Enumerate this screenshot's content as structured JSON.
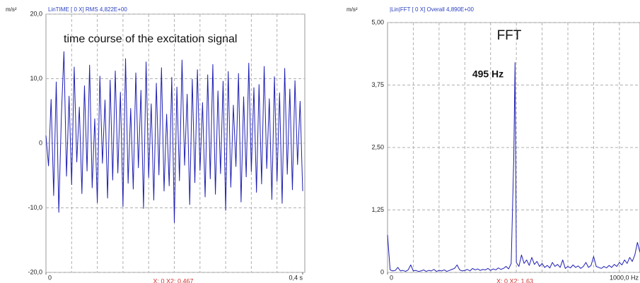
{
  "chart_data": [
    {
      "type": "line",
      "unit": "m/s²",
      "header": "LinTIME [ 0 X] RMS 4,822E+00",
      "annotations": [
        "time course of the excitation signal"
      ],
      "cursor": "X: 0 X2: 0,467",
      "x": [
        0,
        0.004,
        0.008,
        0.012,
        0.016,
        0.02,
        0.024,
        0.028,
        0.032,
        0.036,
        0.04,
        0.044,
        0.048,
        0.052,
        0.056,
        0.06,
        0.064,
        0.068,
        0.072,
        0.076,
        0.08,
        0.084,
        0.088,
        0.092,
        0.096,
        0.1,
        0.104,
        0.108,
        0.112,
        0.116,
        0.12,
        0.124,
        0.128,
        0.132,
        0.136,
        0.14,
        0.144,
        0.148,
        0.152,
        0.156,
        0.16,
        0.164,
        0.168,
        0.172,
        0.176,
        0.18,
        0.184,
        0.188,
        0.192,
        0.196,
        0.2,
        0.204,
        0.208,
        0.212,
        0.216,
        0.22,
        0.224,
        0.228,
        0.232,
        0.236,
        0.24,
        0.244,
        0.248,
        0.252,
        0.256,
        0.26,
        0.264,
        0.268,
        0.272,
        0.276,
        0.28,
        0.284,
        0.288,
        0.292,
        0.296,
        0.3,
        0.304,
        0.308,
        0.312,
        0.316,
        0.32,
        0.324,
        0.328,
        0.332,
        0.336,
        0.34,
        0.344,
        0.348,
        0.352,
        0.356,
        0.36,
        0.364,
        0.368,
        0.372,
        0.376,
        0.38,
        0.384,
        0.388,
        0.392,
        0.396,
        0.4
      ],
      "series": [
        {
          "color": "#1f1fb4",
          "values": [
            1.2,
            -3.5,
            6.8,
            -8.1,
            9.5,
            -10.7,
            4.2,
            14.2,
            -5.1,
            7.3,
            -6.4,
            11.8,
            -2.9,
            5.6,
            -7.8,
            8.9,
            -4.3,
            12.1,
            -6.9,
            3.8,
            -9.2,
            10.4,
            -3.1,
            6.7,
            -8.5,
            9.8,
            -5.7,
            11.2,
            -4.6,
            7.9,
            -9.8,
            13.1,
            -6.2,
            5.4,
            -7.1,
            10.9,
            -3.8,
            8.2,
            -10.1,
            12.6,
            -5.3,
            6.1,
            -8.8,
            9.3,
            -4.9,
            11.7,
            -7.4,
            4.5,
            -6.6,
            10.2,
            -12.3,
            8.7,
            -5.8,
            12.9,
            -3.4,
            7.6,
            -9.5,
            9.9,
            -6.1,
            11.4,
            -4.2,
            6.3,
            -8.3,
            10.6,
            -5.5,
            12.2,
            -7.9,
            8.1,
            -4.7,
            9.6,
            -10.4,
            11.1,
            -6.8,
            5.9,
            -3.6,
            10.8,
            -9.1,
            7.2,
            -5.2,
            12.4,
            -4.4,
            8.6,
            -7.6,
            9.1,
            -6.3,
            11.9,
            -3.9,
            6.9,
            -8.7,
            10.3,
            -5.9,
            7.8,
            -9.3,
            11.6,
            -4.8,
            8.4,
            -7.2,
            9.7,
            -3.3,
            6.5,
            -7.4
          ]
        }
      ],
      "xlim": [
        0,
        0.4
      ],
      "xticks": [
        0,
        {
          "value": 0.4,
          "label": "0,4 s"
        }
      ],
      "xgrid": [
        0.04,
        0.08,
        0.12,
        0.16,
        0.2,
        0.24,
        0.28,
        0.32,
        0.36
      ],
      "ylim": [
        -20,
        20
      ],
      "yticks": [
        {
          "value": 20,
          "label": "20,0"
        },
        {
          "value": 10,
          "label": "10,0"
        },
        0,
        {
          "value": -10,
          "label": "-10,0"
        },
        {
          "value": -20,
          "label": "-20,0"
        }
      ],
      "grid": true
    },
    {
      "type": "line",
      "unit": "m/s²",
      "header": "|Lin|FFT [ 0 X] Overall 4,890E+00",
      "annotations": [
        "FFT",
        "495 Hz"
      ],
      "cursor": "X: 0 X2: 1,63",
      "x": [
        0,
        10,
        20,
        30,
        40,
        50,
        60,
        70,
        80,
        90,
        100,
        110,
        120,
        130,
        140,
        150,
        160,
        170,
        180,
        190,
        200,
        210,
        220,
        230,
        240,
        250,
        260,
        270,
        280,
        290,
        300,
        310,
        320,
        330,
        340,
        350,
        360,
        370,
        380,
        390,
        400,
        410,
        420,
        430,
        440,
        450,
        460,
        470,
        480,
        490,
        495,
        500,
        510,
        520,
        530,
        540,
        550,
        560,
        570,
        580,
        590,
        600,
        610,
        620,
        630,
        640,
        650,
        660,
        670,
        680,
        690,
        700,
        710,
        720,
        730,
        740,
        750,
        760,
        770,
        780,
        790,
        800,
        810,
        820,
        830,
        840,
        850,
        860,
        870,
        880,
        890,
        900,
        910,
        920,
        930,
        940,
        950,
        960,
        970,
        980
      ],
      "series": [
        {
          "color": "#1f1fb4",
          "values": [
            0.75,
            0.05,
            0.03,
            0.04,
            0.1,
            0.03,
            0.04,
            0.02,
            0.05,
            0.15,
            0.03,
            0.04,
            0.02,
            0.03,
            0.05,
            0.02,
            0.04,
            0.03,
            0.06,
            0.02,
            0.04,
            0.03,
            0.05,
            0.02,
            0.04,
            0.06,
            0.08,
            0.15,
            0.05,
            0.03,
            0.04,
            0.06,
            0.03,
            0.08,
            0.05,
            0.07,
            0.04,
            0.06,
            0.05,
            0.08,
            0.04,
            0.07,
            0.05,
            0.09,
            0.06,
            0.08,
            0.12,
            0.07,
            0.18,
            2.3,
            4.2,
            0.2,
            0.12,
            0.35,
            0.18,
            0.25,
            0.14,
            0.3,
            0.16,
            0.22,
            0.12,
            0.18,
            0.1,
            0.14,
            0.09,
            0.2,
            0.12,
            0.16,
            0.1,
            0.25,
            0.08,
            0.12,
            0.09,
            0.15,
            0.1,
            0.13,
            0.08,
            0.12,
            0.2,
            0.1,
            0.14,
            0.32,
            0.12,
            0.1,
            0.08,
            0.12,
            0.09,
            0.14,
            0.1,
            0.16,
            0.12,
            0.2,
            0.15,
            0.25,
            0.18,
            0.3,
            0.22,
            0.35,
            0.6,
            0.4
          ]
        }
      ],
      "xlim": [
        0,
        980
      ],
      "xticks": [
        0,
        {
          "value": 1000,
          "label": "1000,0 Hz"
        }
      ],
      "xgrid": [
        100,
        200,
        300,
        400,
        500,
        600,
        700,
        800,
        900
      ],
      "ylim": [
        0,
        5
      ],
      "yticks": [
        {
          "value": 5,
          "label": "5,00"
        },
        {
          "value": 3.75,
          "label": "3,75"
        },
        {
          "value": 2.5,
          "label": "2,50"
        },
        {
          "value": 1.25,
          "label": "1,25"
        },
        0
      ],
      "grid": true
    }
  ]
}
